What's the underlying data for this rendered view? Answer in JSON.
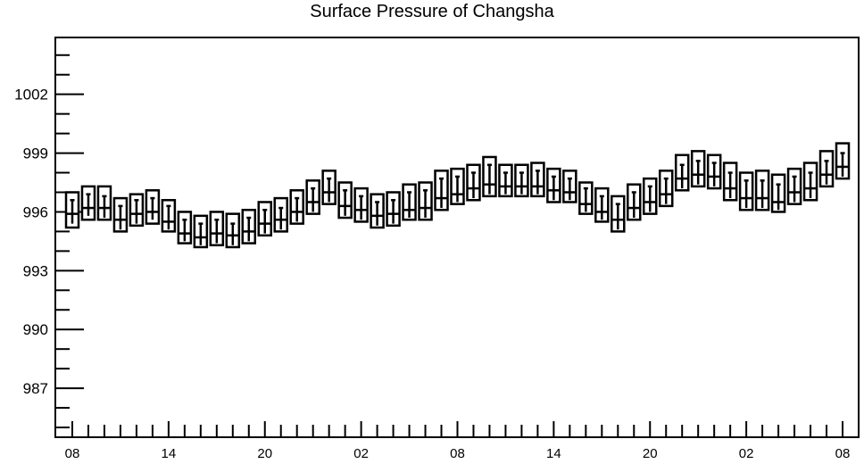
{
  "chart_data": {
    "type": "box",
    "title": "Surface Pressure of Changsha",
    "xlabel": "",
    "ylabel": "",
    "ylim": [
      984.5,
      1004.9
    ],
    "y_ticks": [
      987,
      990,
      993,
      996,
      999,
      1002
    ],
    "x_tick_labels": [
      "08",
      "14",
      "20",
      "02",
      "08",
      "14",
      "20",
      "02",
      "08"
    ],
    "grid": false,
    "series": [
      {
        "times": [
          "08",
          "09",
          "10",
          "11",
          "12",
          "13",
          "14",
          "15",
          "16",
          "17",
          "18",
          "19",
          "20",
          "21",
          "22",
          "23",
          "00",
          "01",
          "02",
          "03",
          "04",
          "05",
          "06",
          "07",
          "08",
          "09",
          "10",
          "11",
          "12",
          "13",
          "14",
          "15",
          "16",
          "17",
          "18",
          "19",
          "20",
          "21",
          "22",
          "23",
          "00",
          "01",
          "02",
          "03",
          "04",
          "05",
          "06",
          "07",
          "08"
        ],
        "q1": [
          995.2,
          995.6,
          995.6,
          995.0,
          995.3,
          995.4,
          995.0,
          994.4,
          994.2,
          994.3,
          994.2,
          994.4,
          994.8,
          995.0,
          995.4,
          995.9,
          996.4,
          995.7,
          995.5,
          995.2,
          995.3,
          995.6,
          995.6,
          996.1,
          996.4,
          996.6,
          996.8,
          996.8,
          996.8,
          996.8,
          996.5,
          996.5,
          995.9,
          995.5,
          995.0,
          995.6,
          995.9,
          996.3,
          997.1,
          997.3,
          997.2,
          996.6,
          996.1,
          996.1,
          996.0,
          996.4,
          996.6,
          997.3,
          997.7
        ],
        "median": [
          995.9,
          996.2,
          996.2,
          995.6,
          995.9,
          996.0,
          995.5,
          994.9,
          994.7,
          994.9,
          994.8,
          995.0,
          995.4,
          995.6,
          996.0,
          996.5,
          997.0,
          996.3,
          996.1,
          995.8,
          995.9,
          996.1,
          996.2,
          996.7,
          996.9,
          997.2,
          997.4,
          997.3,
          997.3,
          997.3,
          997.1,
          997.0,
          996.4,
          996.0,
          995.6,
          996.2,
          996.5,
          996.9,
          997.7,
          997.9,
          997.8,
          997.2,
          996.7,
          996.7,
          996.5,
          997.0,
          997.2,
          997.9,
          998.3
        ],
        "q3": [
          997.0,
          997.3,
          997.3,
          996.7,
          996.9,
          997.1,
          996.6,
          996.0,
          995.8,
          996.0,
          995.9,
          996.1,
          996.5,
          996.7,
          997.1,
          997.6,
          998.1,
          997.5,
          997.2,
          996.9,
          997.0,
          997.4,
          997.5,
          998.1,
          998.2,
          998.4,
          998.8,
          998.4,
          998.4,
          998.5,
          998.2,
          998.1,
          997.5,
          997.2,
          996.8,
          997.4,
          997.7,
          998.1,
          998.9,
          999.1,
          998.9,
          998.5,
          998.0,
          998.1,
          997.9,
          998.2,
          998.5,
          999.1,
          999.5
        ],
        "whisker_low": [
          995.4,
          995.8,
          995.7,
          995.1,
          995.4,
          995.6,
          995.1,
          994.5,
          994.3,
          994.4,
          994.3,
          994.5,
          994.9,
          995.1,
          995.5,
          996.0,
          996.5,
          995.8,
          995.6,
          995.3,
          995.4,
          995.7,
          995.7,
          996.2,
          996.5,
          996.7,
          996.9,
          996.9,
          996.9,
          996.9,
          996.6,
          996.6,
          996.0,
          995.6,
          995.1,
          995.7,
          996.0,
          996.4,
          997.2,
          997.4,
          997.3,
          996.7,
          996.2,
          996.2,
          996.1,
          996.5,
          996.7,
          997.4,
          997.8
        ],
        "whisker_high": [
          996.6,
          996.9,
          996.8,
          996.3,
          996.6,
          996.7,
          996.3,
          995.6,
          995.4,
          995.6,
          995.4,
          995.7,
          996.1,
          996.2,
          996.7,
          997.2,
          997.7,
          997.1,
          996.8,
          996.5,
          996.6,
          997.0,
          997.1,
          997.7,
          997.8,
          998.0,
          998.4,
          998.0,
          998.0,
          998.1,
          997.8,
          997.7,
          997.2,
          996.8,
          996.4,
          997.0,
          997.3,
          997.7,
          998.4,
          998.6,
          998.5,
          998.0,
          997.6,
          997.6,
          997.4,
          997.8,
          998.0,
          998.6,
          999.0
        ]
      }
    ]
  }
}
